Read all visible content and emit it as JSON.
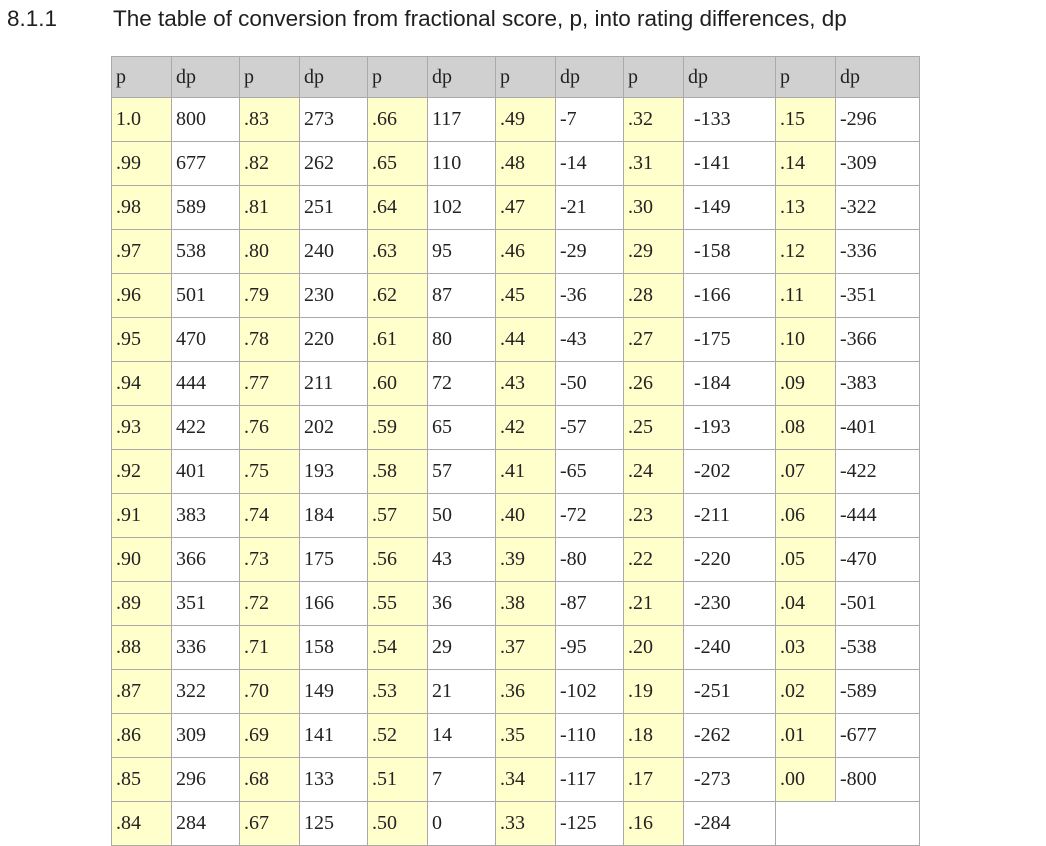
{
  "section": {
    "number": "8.1.1",
    "title": "The table of conversion from fractional score, p, into rating differences, dp"
  },
  "table": {
    "headers": [
      "p",
      "dp",
      "p",
      "dp",
      "p",
      "dp",
      "p",
      "dp",
      "p",
      "dp",
      "p",
      "dp"
    ],
    "rows": [
      [
        "1.0",
        "800",
        ".83",
        "273",
        ".66",
        "117",
        ".49",
        "-7",
        ".32",
        "-133",
        ".15",
        "-296"
      ],
      [
        ".99",
        "677",
        ".82",
        "262",
        ".65",
        "110",
        ".48",
        "-14",
        ".31",
        "-141",
        ".14",
        "-309"
      ],
      [
        ".98",
        "589",
        ".81",
        "251",
        ".64",
        "102",
        ".47",
        "-21",
        ".30",
        "-149",
        ".13",
        "-322"
      ],
      [
        ".97",
        "538",
        ".80",
        "240",
        ".63",
        "95",
        ".46",
        "-29",
        ".29",
        "-158",
        ".12",
        "-336"
      ],
      [
        ".96",
        "501",
        ".79",
        "230",
        ".62",
        "87",
        ".45",
        "-36",
        ".28",
        "-166",
        ".11",
        "-351"
      ],
      [
        ".95",
        "470",
        ".78",
        "220",
        ".61",
        "80",
        ".44",
        "-43",
        ".27",
        "-175",
        ".10",
        "-366"
      ],
      [
        ".94",
        "444",
        ".77",
        "211",
        ".60",
        "72",
        ".43",
        "-50",
        ".26",
        "-184",
        ".09",
        "-383"
      ],
      [
        ".93",
        "422",
        ".76",
        "202",
        ".59",
        "65",
        ".42",
        "-57",
        ".25",
        "-193",
        ".08",
        "-401"
      ],
      [
        ".92",
        "401",
        ".75",
        "193",
        ".58",
        "57",
        ".41",
        "-65",
        ".24",
        "-202",
        ".07",
        "-422"
      ],
      [
        ".91",
        "383",
        ".74",
        "184",
        ".57",
        "50",
        ".40",
        "-72",
        ".23",
        "-211",
        ".06",
        "-444"
      ],
      [
        ".90",
        "366",
        ".73",
        "175",
        ".56",
        "43",
        ".39",
        "-80",
        ".22",
        "-220",
        ".05",
        "-470"
      ],
      [
        ".89",
        "351",
        ".72",
        "166",
        ".55",
        "36",
        ".38",
        "-87",
        ".21",
        "-230",
        ".04",
        "-501"
      ],
      [
        ".88",
        "336",
        ".71",
        "158",
        ".54",
        "29",
        ".37",
        "-95",
        ".20",
        "-240",
        ".03",
        "-538"
      ],
      [
        ".87",
        "322",
        ".70",
        "149",
        ".53",
        "21",
        ".36",
        "-102",
        ".19",
        "-251",
        ".02",
        "-589"
      ],
      [
        ".86",
        "309",
        ".69",
        "141",
        ".52",
        "14",
        ".35",
        "-110",
        ".18",
        "-262",
        ".01",
        "-677"
      ],
      [
        ".85",
        "296",
        ".68",
        "133",
        ".51",
        "7",
        ".34",
        "-117",
        ".17",
        "-273",
        ".00",
        "-800"
      ],
      [
        ".84",
        "284",
        ".67",
        "125",
        ".50",
        "0",
        ".33",
        "-125",
        ".16",
        "-284"
      ]
    ]
  },
  "colors": {
    "header_bg": "#d0d0d0",
    "p_cell_bg": "#ffffcc",
    "dp_cell_bg": "#ffffff",
    "border": "#aaaaaa"
  }
}
